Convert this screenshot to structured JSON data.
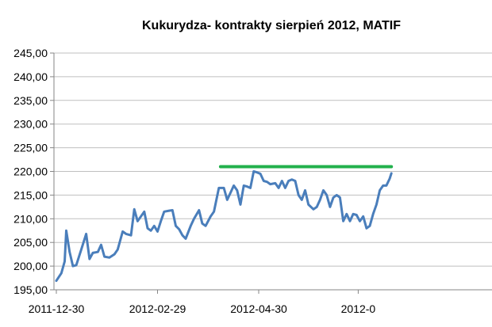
{
  "chart_data": {
    "type": "line",
    "title": "Kukurydza- kontrakty sierpień 2012, MATIF",
    "xlabel": "",
    "ylabel": "",
    "ylim": [
      195,
      245
    ],
    "yticks": [
      "195,00",
      "200,00",
      "205,00",
      "210,00",
      "215,00",
      "220,00",
      "225,00",
      "230,00",
      "235,00",
      "240,00",
      "245,00"
    ],
    "xticks": [
      {
        "date": "2011-12-30",
        "label": "2011-12-30"
      },
      {
        "date": "2012-02-29",
        "label": "2012-02-29"
      },
      {
        "date": "2012-04-30",
        "label": "2012-04-30"
      },
      {
        "date": "2012-06-29",
        "label": "2012-0"
      }
    ],
    "grid": true,
    "series": [
      {
        "color": "#4a7ebb",
        "points": [
          [
            "2011-12-30",
            196.9
          ],
          [
            "2012-01-02",
            198.5
          ],
          [
            "2012-01-04",
            201.0
          ],
          [
            "2012-01-05",
            207.5
          ],
          [
            "2012-01-07",
            203.0
          ],
          [
            "2012-01-09",
            200.0
          ],
          [
            "2012-01-11",
            200.2
          ],
          [
            "2012-01-14",
            203.5
          ],
          [
            "2012-01-17",
            206.8
          ],
          [
            "2012-01-19",
            201.5
          ],
          [
            "2012-01-21",
            202.8
          ],
          [
            "2012-01-24",
            203.0
          ],
          [
            "2012-01-26",
            204.5
          ],
          [
            "2012-01-28",
            202.0
          ],
          [
            "2012-01-31",
            201.8
          ],
          [
            "2012-02-03",
            202.5
          ],
          [
            "2012-02-05",
            203.5
          ],
          [
            "2012-02-08",
            207.3
          ],
          [
            "2012-02-10",
            206.8
          ],
          [
            "2012-02-13",
            206.5
          ],
          [
            "2012-02-15",
            212.0
          ],
          [
            "2012-02-17",
            209.5
          ],
          [
            "2012-02-19",
            210.5
          ],
          [
            "2012-02-21",
            211.5
          ],
          [
            "2012-02-23",
            208.0
          ],
          [
            "2012-02-25",
            207.5
          ],
          [
            "2012-02-27",
            208.5
          ],
          [
            "2012-02-29",
            207.3
          ],
          [
            "2012-03-02",
            209.5
          ],
          [
            "2012-03-04",
            211.5
          ],
          [
            "2012-03-07",
            211.7
          ],
          [
            "2012-03-09",
            211.8
          ],
          [
            "2012-03-11",
            208.5
          ],
          [
            "2012-03-13",
            207.8
          ],
          [
            "2012-03-15",
            206.5
          ],
          [
            "2012-03-17",
            205.8
          ],
          [
            "2012-03-20",
            208.5
          ],
          [
            "2012-03-22",
            210.0
          ],
          [
            "2012-03-25",
            211.8
          ],
          [
            "2012-03-27",
            209.0
          ],
          [
            "2012-03-29",
            208.5
          ],
          [
            "2012-04-01",
            210.5
          ],
          [
            "2012-04-03",
            211.5
          ],
          [
            "2012-04-06",
            216.5
          ],
          [
            "2012-04-09",
            216.5
          ],
          [
            "2012-04-11",
            214.0
          ],
          [
            "2012-04-13",
            215.5
          ],
          [
            "2012-04-15",
            217.0
          ],
          [
            "2012-04-17",
            216.0
          ],
          [
            "2012-04-19",
            213.0
          ],
          [
            "2012-04-21",
            217.0
          ],
          [
            "2012-04-23",
            216.8
          ],
          [
            "2012-04-25",
            216.5
          ],
          [
            "2012-04-27",
            220.0
          ],
          [
            "2012-04-29",
            219.8
          ],
          [
            "2012-05-01",
            219.5
          ],
          [
            "2012-05-03",
            218.0
          ],
          [
            "2012-05-05",
            217.8
          ],
          [
            "2012-05-07",
            217.3
          ],
          [
            "2012-05-10",
            217.5
          ],
          [
            "2012-05-12",
            216.5
          ],
          [
            "2012-05-14",
            218.0
          ],
          [
            "2012-05-16",
            216.5
          ],
          [
            "2012-05-18",
            218.0
          ],
          [
            "2012-05-20",
            218.3
          ],
          [
            "2012-05-22",
            218.0
          ],
          [
            "2012-05-24",
            215.0
          ],
          [
            "2012-05-26",
            214.0
          ],
          [
            "2012-05-28",
            216.0
          ],
          [
            "2012-05-30",
            213.0
          ],
          [
            "2012-06-02",
            212.0
          ],
          [
            "2012-06-04",
            212.5
          ],
          [
            "2012-06-06",
            214.0
          ],
          [
            "2012-06-08",
            216.0
          ],
          [
            "2012-06-10",
            215.0
          ],
          [
            "2012-06-12",
            212.5
          ],
          [
            "2012-06-14",
            214.5
          ],
          [
            "2012-06-16",
            215.0
          ],
          [
            "2012-06-18",
            214.5
          ],
          [
            "2012-06-20",
            209.5
          ],
          [
            "2012-06-22",
            211.0
          ],
          [
            "2012-06-24",
            209.5
          ],
          [
            "2012-06-26",
            211.0
          ],
          [
            "2012-06-28",
            210.8
          ],
          [
            "2012-06-30",
            209.5
          ],
          [
            "2012-07-02",
            210.5
          ],
          [
            "2012-07-04",
            208.0
          ],
          [
            "2012-07-06",
            208.5
          ],
          [
            "2012-07-08",
            211.0
          ],
          [
            "2012-07-10",
            213.0
          ],
          [
            "2012-07-12",
            216.0
          ],
          [
            "2012-07-14",
            217.0
          ],
          [
            "2012-07-16",
            217.0
          ],
          [
            "2012-07-18",
            218.5
          ],
          [
            "2012-07-19",
            219.6
          ]
        ]
      },
      {
        "color": "#22b14c",
        "points": [
          [
            "2012-04-07",
            221.0
          ],
          [
            "2012-07-19",
            221.0
          ]
        ]
      }
    ]
  }
}
